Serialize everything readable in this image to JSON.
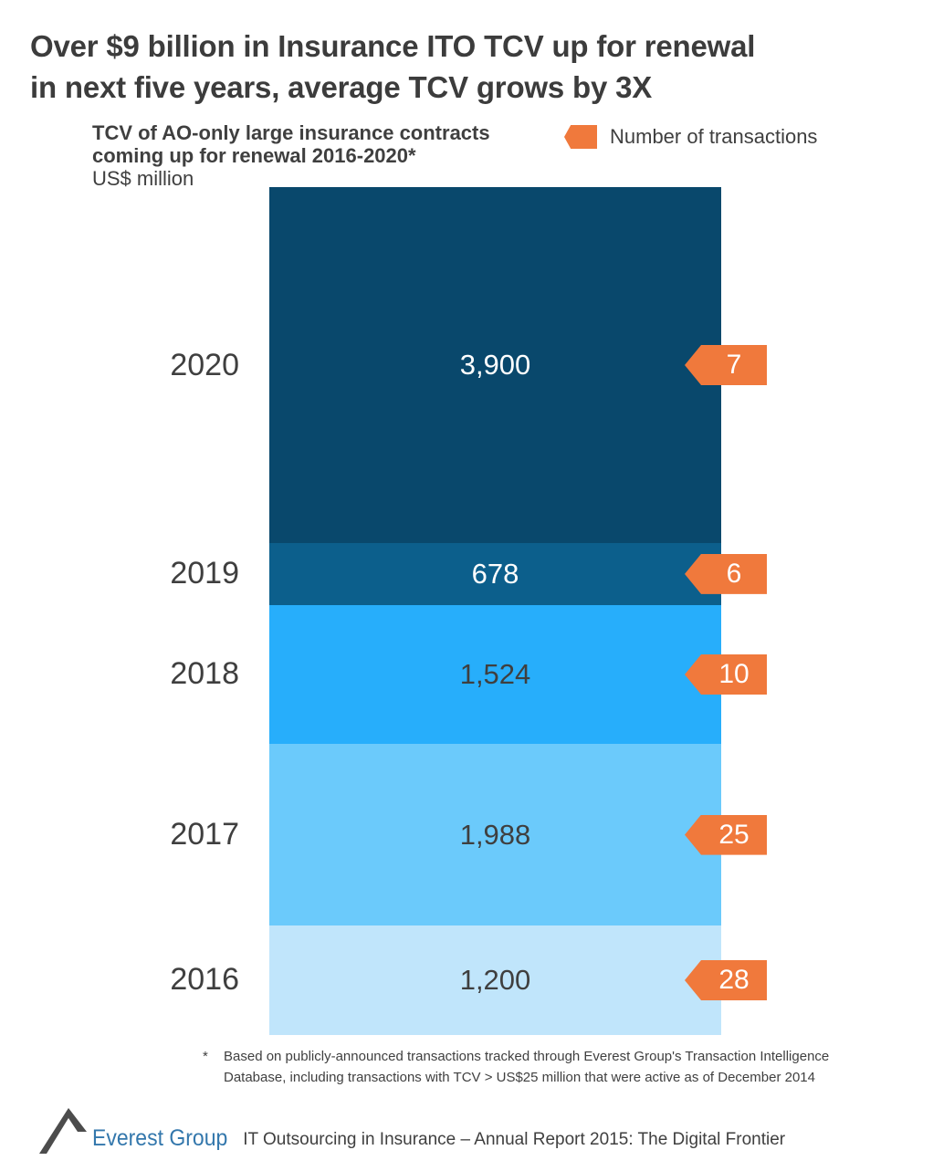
{
  "title": {
    "lines": [
      "Over $9 billion in Insurance ITO TCV up for renewal",
      "in next five years, average TCV grows by 3X"
    ]
  },
  "subtitle": {
    "lines": [
      "TCV of AO-only large insurance contracts",
      "coming up for renewal 2016-2020*"
    ],
    "unit": "US$ million"
  },
  "legend": {
    "label": "Number of transactions",
    "icon": "left-arrow-tag-icon",
    "color": "#F0793C"
  },
  "chart_data": {
    "type": "bar",
    "subtype": "single-stacked-column-segmented-by-year",
    "title": "TCV of AO-only large insurance contracts coming up for renewal 2016-2020*",
    "unit": "US$ million",
    "categories": [
      "2020",
      "2019",
      "2018",
      "2017",
      "2016"
    ],
    "series": [
      {
        "name": "TCV (US$ million)",
        "values": [
          3900,
          678,
          1524,
          1988,
          1200
        ]
      },
      {
        "name": "Number of transactions",
        "values": [
          7,
          6,
          10,
          25,
          28
        ]
      }
    ],
    "total_tcv": 9290,
    "grid": false,
    "axes": "none (value labels inside segments, year labels at left, transaction badges at right)",
    "legend_position": "top-right",
    "rows": [
      {
        "year": "2020",
        "tcv": "3,900",
        "tcv_value": 3900,
        "transactions": "7",
        "color": "#09486C",
        "value_color": "#FFFFFF"
      },
      {
        "year": "2019",
        "tcv": "678",
        "tcv_value": 678,
        "transactions": "6",
        "color": "#0C5F8C",
        "value_color": "#FFFFFF"
      },
      {
        "year": "2018",
        "tcv": "1,524",
        "tcv_value": 1524,
        "transactions": "10",
        "color": "#27AEFB",
        "value_color": "#3F3F3F"
      },
      {
        "year": "2017",
        "tcv": "1,988",
        "tcv_value": 1988,
        "transactions": "25",
        "color": "#6BCAFB",
        "value_color": "#3F3F3F"
      },
      {
        "year": "2016",
        "tcv": "1,200",
        "tcv_value": 1200,
        "transactions": "28",
        "color": "#C0E5FB",
        "value_color": "#3F3F3F"
      }
    ],
    "badge_color": "#F0793C"
  },
  "footnote": {
    "marker": "*",
    "lines": [
      "Based on publicly-announced transactions tracked through Everest Group's Transaction Intelligence",
      "Database, including transactions with TCV > US$25 million that were active as of December 2014"
    ]
  },
  "footer": {
    "logo_text": "Everest Group",
    "report_title": "IT Outsourcing in Insurance – Annual Report 2015: The Digital Frontier"
  }
}
